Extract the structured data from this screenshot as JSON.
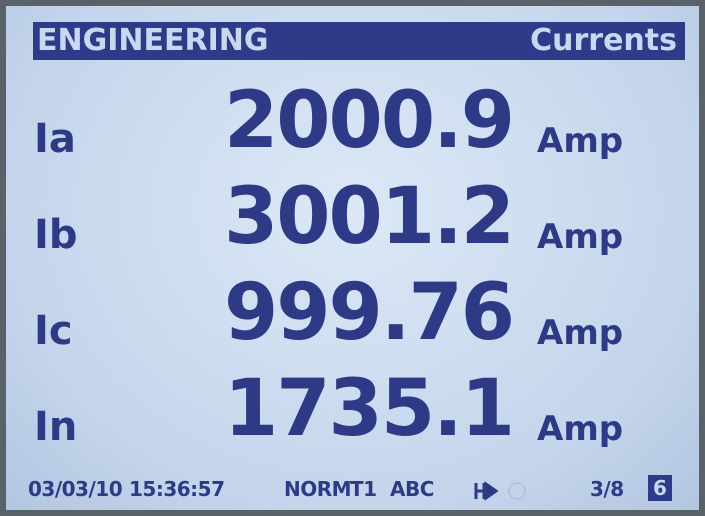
{
  "header": {
    "left": "ENGINEERING",
    "right": "Currents"
  },
  "rows": [
    {
      "label": "Ia",
      "value": "2000.9",
      "unit": "Amp"
    },
    {
      "label": "Ib",
      "value": "3001.2",
      "unit": "Amp"
    },
    {
      "label": "Ic",
      "value": "999.76",
      "unit": "Amp"
    },
    {
      "label": "In",
      "value": "1735.1",
      "unit": "Amp"
    }
  ],
  "footer": {
    "date": "03/03/10",
    "time": "15:36:57",
    "mode": "NORM",
    "tariff": "T1",
    "phase": "ABC",
    "page": "3/8",
    "badge": "6"
  }
}
